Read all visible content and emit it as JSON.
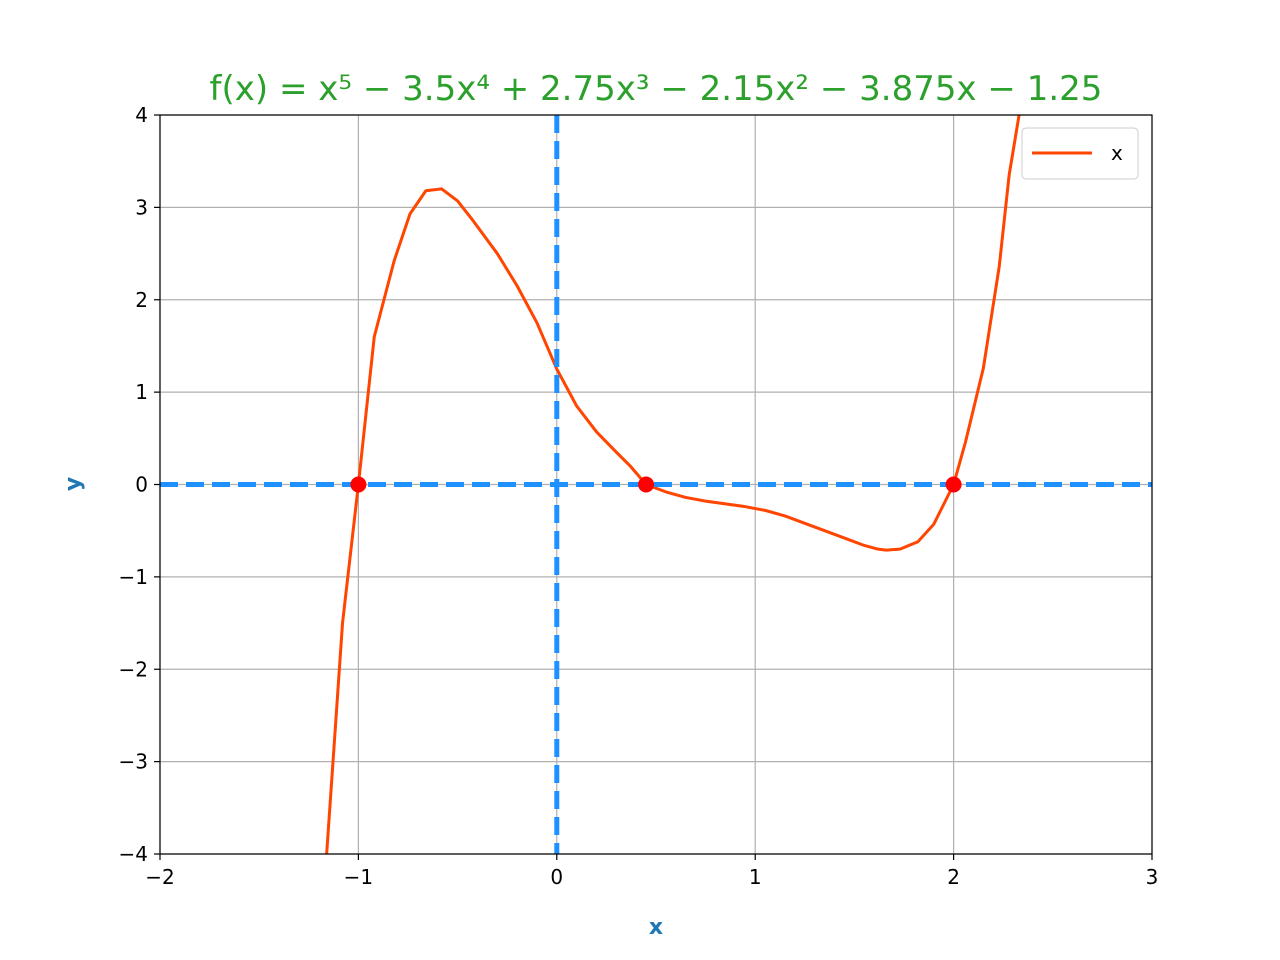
{
  "chart_data": {
    "type": "line",
    "title": "f(x) = x⁵ − 3.5x⁴ + 2.75x³ − 2.15x² − 3.875x − 1.25",
    "title_color": "#2ca02c",
    "xlabel": "x",
    "ylabel": "y",
    "label_color": "#1f77b4",
    "xlim": [
      -2,
      3
    ],
    "ylim": [
      -4,
      4
    ],
    "x_ticks": [
      -2,
      -1,
      0,
      1,
      2,
      3
    ],
    "x_tick_labels": [
      "−2",
      "−1",
      "0",
      "1",
      "2",
      "3"
    ],
    "y_ticks": [
      -4,
      -3,
      -2,
      -1,
      0,
      1,
      2,
      3,
      4
    ],
    "y_tick_labels": [
      "−4",
      "−3",
      "−2",
      "−1",
      "0",
      "1",
      "2",
      "3",
      "4"
    ],
    "grid": true,
    "legend_position": "top-right",
    "series": [
      {
        "name": "x",
        "color": "#ff4500",
        "x": [
          -1.16,
          -1.08,
          -1.0,
          -0.92,
          -0.82,
          -0.74,
          -0.66,
          -0.58,
          -0.5,
          -0.42,
          -0.3,
          -0.2,
          -0.1,
          0.0,
          0.1,
          0.2,
          0.3,
          0.37,
          0.45,
          0.55,
          0.65,
          0.75,
          0.85,
          0.95,
          1.05,
          1.15,
          1.25,
          1.35,
          1.45,
          1.55,
          1.62,
          1.66,
          1.73,
          1.82,
          1.9,
          2.0,
          2.06,
          2.15,
          2.23,
          2.28,
          2.33
        ],
        "y": [
          -4.0,
          -1.5,
          0.0,
          1.6,
          2.42,
          2.93,
          3.18,
          3.2,
          3.07,
          2.85,
          2.5,
          2.15,
          1.75,
          1.25,
          0.85,
          0.57,
          0.35,
          0.2,
          0.0,
          -0.08,
          -0.14,
          -0.18,
          -0.21,
          -0.24,
          -0.28,
          -0.34,
          -0.42,
          -0.5,
          -0.58,
          -0.66,
          -0.7,
          -0.71,
          -0.7,
          -0.62,
          -0.43,
          0.0,
          0.46,
          1.26,
          2.36,
          3.35,
          4.0
        ]
      }
    ],
    "roots": {
      "color": "#ff0000",
      "x": [
        -1.0,
        0.45,
        2.0
      ],
      "y": [
        0,
        0,
        0
      ]
    },
    "reference_lines": {
      "color": "#1e90ff",
      "style": "dashed",
      "vertical_x": 0,
      "horizontal_y": 0
    },
    "legend": [
      {
        "label": "x",
        "color": "#ff4500"
      }
    ]
  }
}
